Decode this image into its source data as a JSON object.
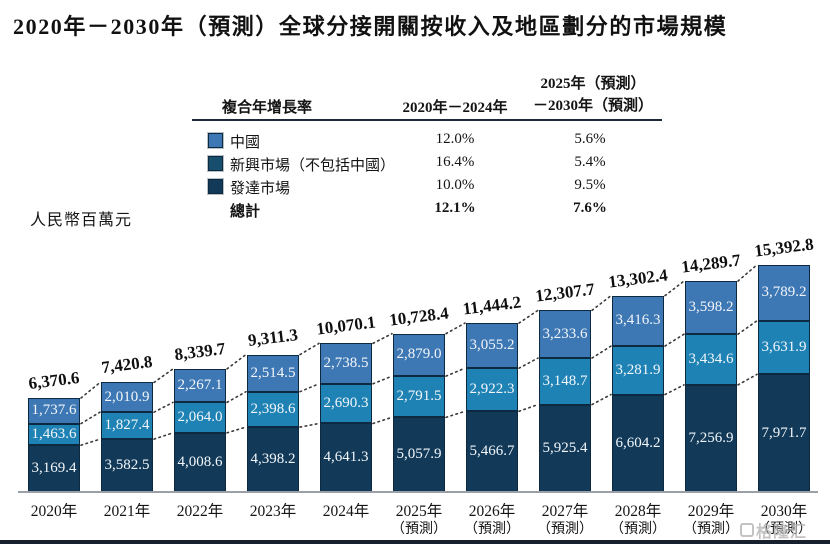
{
  "title": "2020年－2030年（預測）全球分接開關按收入及地區劃分的市場規模",
  "unit_label": "人民幣百萬元",
  "watermark": "格隆汇",
  "cagr_table": {
    "header_metric": "複合年增長率",
    "header_period1": "2020年－2024年",
    "header_period2_line1": "2025年（預測）",
    "header_period2_line2": "－2030年（預測）",
    "rows": [
      {
        "label": "中國",
        "swatch": "#3d77b4",
        "period1": "12.0%",
        "period2": "5.6%",
        "bold": false
      },
      {
        "label": "新興市場（不包括中國）",
        "swatch": "#174e6e",
        "period1": "16.4%",
        "period2": "5.4%",
        "bold": false
      },
      {
        "label": "發達市場",
        "swatch": "#123a58",
        "period1": "10.0%",
        "period2": "9.5%",
        "bold": false
      },
      {
        "label": "總計",
        "swatch": null,
        "period1": "12.1%",
        "period2": "7.6%",
        "bold": true
      }
    ]
  },
  "chart_data": {
    "type": "bar",
    "stacked": true,
    "title": "2020年－2030年（預測）全球分接開關按收入及地區劃分的市場規模",
    "ylabel": "人民幣百萬元",
    "legend_position": "top",
    "grid": false,
    "categories": [
      {
        "year": "2020年",
        "note": ""
      },
      {
        "year": "2021年",
        "note": ""
      },
      {
        "year": "2022年",
        "note": ""
      },
      {
        "year": "2023年",
        "note": ""
      },
      {
        "year": "2024年",
        "note": ""
      },
      {
        "year": "2025年",
        "note": "（預測）"
      },
      {
        "year": "2026年",
        "note": "（預測）"
      },
      {
        "year": "2027年",
        "note": "（預測）"
      },
      {
        "year": "2028年",
        "note": "（預測）"
      },
      {
        "year": "2029年",
        "note": "（預測）"
      },
      {
        "year": "2030年",
        "note": "（預測）"
      }
    ],
    "series": [
      {
        "name": "發達市場",
        "color": "#123a58",
        "values": [
          3169.4,
          3582.5,
          4008.6,
          4398.2,
          4641.3,
          5057.9,
          5466.7,
          5925.4,
          6604.2,
          7256.9,
          7971.7
        ]
      },
      {
        "name": "新興市場（不包括中國）",
        "color": "#1f82b4",
        "values": [
          1463.6,
          1827.4,
          2064.0,
          2398.6,
          2690.3,
          2791.5,
          2922.3,
          3148.7,
          3281.9,
          3434.6,
          3631.9
        ]
      },
      {
        "name": "中國",
        "color": "#3d77b4",
        "values": [
          1737.6,
          2010.9,
          2267.1,
          2514.5,
          2738.5,
          2879.0,
          3055.2,
          3233.6,
          3416.3,
          3598.2,
          3789.2
        ]
      }
    ],
    "totals": [
      6370.6,
      7420.8,
      8339.7,
      9311.3,
      10070.1,
      10728.4,
      11444.2,
      12307.7,
      13302.4,
      14289.7,
      15392.8
    ],
    "ylim": [
      0,
      15392.8
    ]
  }
}
